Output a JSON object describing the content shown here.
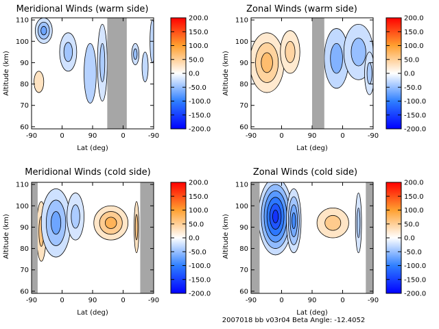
{
  "footer": "2007018 bb v03r04    Beta Angle: -12.4052",
  "colorbar": {
    "ticks": [
      "200.0",
      "150.0",
      "100.0",
      "50.0",
      "0.0",
      "-50.0",
      "-100.0",
      "-150.0",
      "-200.0"
    ],
    "range": [
      -200,
      200
    ]
  },
  "chart_data": [
    {
      "type": "heatmap",
      "title": "Meridional Winds (warm side)",
      "xlabel": "Lat (deg)",
      "ylabel": "Altitude (km)",
      "xticks": [
        "-90",
        "0",
        "90",
        "0",
        "-90"
      ],
      "yticks": [
        "110",
        "100",
        "90",
        "80",
        "70",
        "60"
      ],
      "ylim": [
        59,
        111
      ],
      "gray_bands": [
        [
          0.62,
          0.78
        ]
      ],
      "blobs": [
        {
          "x": 0.1,
          "alt": 105,
          "rx": 0.07,
          "ry": 6,
          "value": -70
        },
        {
          "x": 0.3,
          "alt": 95,
          "rx": 0.07,
          "ry": 9,
          "value": -45
        },
        {
          "x": 0.48,
          "alt": 85,
          "rx": 0.05,
          "ry": 14,
          "value": -35
        },
        {
          "x": 0.58,
          "alt": 90,
          "rx": 0.04,
          "ry": 18,
          "value": -40
        },
        {
          "x": 0.06,
          "alt": 81,
          "rx": 0.04,
          "ry": 5,
          "value": 30
        },
        {
          "x": 0.85,
          "alt": 94,
          "rx": 0.03,
          "ry": 5,
          "value": -50
        },
        {
          "x": 0.93,
          "alt": 88,
          "rx": 0.025,
          "ry": 7,
          "value": -30
        },
        {
          "x": 0.99,
          "alt": 100,
          "rx": 0.02,
          "ry": 10,
          "value": -30
        }
      ]
    },
    {
      "type": "heatmap",
      "title": "Zonal Winds (warm side)",
      "xlabel": "Lat (deg)",
      "ylabel": "Altitude (km)",
      "xticks": [
        "-90",
        "0",
        "90",
        "0",
        "-90"
      ],
      "yticks": [
        "110",
        "100",
        "90",
        "80",
        "70",
        "60"
      ],
      "ylim": [
        59,
        111
      ],
      "gray_bands": [
        [
          0.5,
          0.6
        ]
      ],
      "blobs": [
        {
          "x": 0.13,
          "alt": 90,
          "rx": 0.14,
          "ry": 14,
          "value": 70
        },
        {
          "x": 0.32,
          "alt": 95,
          "rx": 0.08,
          "ry": 10,
          "value": 45
        },
        {
          "x": 0.7,
          "alt": 92,
          "rx": 0.1,
          "ry": 14,
          "value": -60
        },
        {
          "x": 0.88,
          "alt": 95,
          "rx": 0.12,
          "ry": 13,
          "value": -50
        },
        {
          "x": 0.97,
          "alt": 85,
          "rx": 0.04,
          "ry": 10,
          "value": -40
        }
      ]
    },
    {
      "type": "heatmap",
      "title": "Meridional Winds (cold side)",
      "xlabel": "Lat (deg)",
      "ylabel": "Altitude (km)",
      "xticks": [
        "-90",
        "0",
        "90",
        "0",
        "-90"
      ],
      "yticks": [
        "110",
        "100",
        "90",
        "80",
        "70",
        "60"
      ],
      "ylim": [
        59,
        111
      ],
      "gray_bands": [
        [
          0.0,
          0.05
        ],
        [
          0.89,
          1.0
        ]
      ],
      "blobs": [
        {
          "x": 0.08,
          "alt": 88,
          "rx": 0.04,
          "ry": 14,
          "value": 60
        },
        {
          "x": 0.2,
          "alt": 92,
          "rx": 0.12,
          "ry": 16,
          "value": -70
        },
        {
          "x": 0.36,
          "alt": 95,
          "rx": 0.07,
          "ry": 11,
          "value": -40
        },
        {
          "x": 0.65,
          "alt": 92,
          "rx": 0.14,
          "ry": 8,
          "value": 80
        },
        {
          "x": 0.86,
          "alt": 90,
          "rx": 0.02,
          "ry": 12,
          "value": 60
        }
      ]
    },
    {
      "type": "heatmap",
      "title": "Zonal Winds (cold side)",
      "xlabel": "Lat (deg)",
      "ylabel": "Altitude (km)",
      "xticks": [
        "-90",
        "0",
        "90",
        "0",
        "-90"
      ],
      "yticks": [
        "110",
        "100",
        "90",
        "80",
        "70",
        "60"
      ],
      "ylim": [
        59,
        111
      ],
      "gray_bands": [
        [
          0.0,
          0.07
        ],
        [
          0.94,
          1.0
        ]
      ],
      "blobs": [
        {
          "x": 0.2,
          "alt": 95,
          "rx": 0.14,
          "ry": 18,
          "value": -160
        },
        {
          "x": 0.35,
          "alt": 93,
          "rx": 0.06,
          "ry": 15,
          "value": -90
        },
        {
          "x": 0.67,
          "alt": 92,
          "rx": 0.13,
          "ry": 7,
          "value": 55
        },
        {
          "x": 0.88,
          "alt": 92,
          "rx": 0.025,
          "ry": 14,
          "value": -40
        }
      ]
    }
  ]
}
